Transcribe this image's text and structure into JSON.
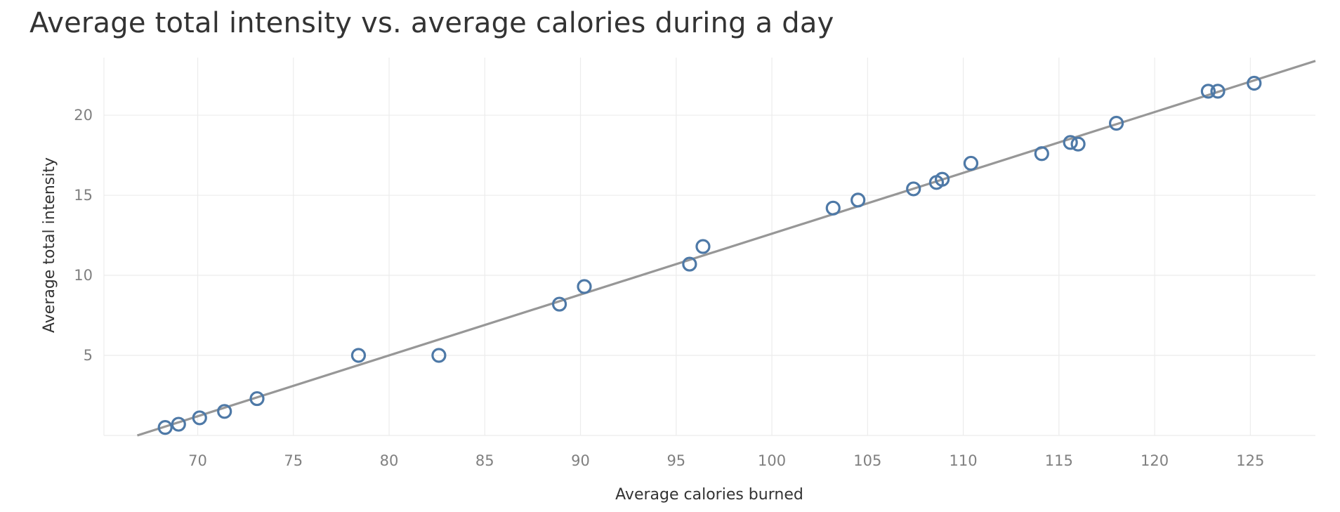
{
  "chart_data": {
    "type": "scatter",
    "title": "Average total intensity vs. average calories during a day",
    "xlabel": "Average calories burned",
    "ylabel": "Average total intensity",
    "xlim": [
      65.1,
      128.4
    ],
    "ylim": [
      0,
      23.6
    ],
    "x_ticks": [
      70,
      75,
      80,
      85,
      90,
      95,
      100,
      105,
      110,
      115,
      120,
      125
    ],
    "y_ticks": [
      5,
      10,
      15,
      20
    ],
    "grid": true,
    "legend": "none",
    "colors": {
      "points": "#4e79a7",
      "trend": "#979797",
      "grid": "#ececec"
    },
    "trendline": {
      "slope": 0.38,
      "intercept": -25.4
    },
    "points": [
      {
        "x": 68.3,
        "y": 0.5
      },
      {
        "x": 69.0,
        "y": 0.7
      },
      {
        "x": 70.1,
        "y": 1.1
      },
      {
        "x": 71.4,
        "y": 1.5
      },
      {
        "x": 73.1,
        "y": 2.3
      },
      {
        "x": 78.4,
        "y": 5.0
      },
      {
        "x": 82.6,
        "y": 5.0
      },
      {
        "x": 88.9,
        "y": 8.2
      },
      {
        "x": 90.2,
        "y": 9.3
      },
      {
        "x": 95.7,
        "y": 10.7
      },
      {
        "x": 96.4,
        "y": 11.8
      },
      {
        "x": 103.2,
        "y": 14.2
      },
      {
        "x": 104.5,
        "y": 14.7
      },
      {
        "x": 107.4,
        "y": 15.4
      },
      {
        "x": 108.6,
        "y": 15.8
      },
      {
        "x": 108.9,
        "y": 16.0
      },
      {
        "x": 110.4,
        "y": 17.0
      },
      {
        "x": 114.1,
        "y": 17.6
      },
      {
        "x": 115.6,
        "y": 18.3
      },
      {
        "x": 116.0,
        "y": 18.2
      },
      {
        "x": 118.0,
        "y": 19.5
      },
      {
        "x": 122.8,
        "y": 21.5
      },
      {
        "x": 123.3,
        "y": 21.5
      },
      {
        "x": 125.2,
        "y": 22.0
      }
    ]
  }
}
